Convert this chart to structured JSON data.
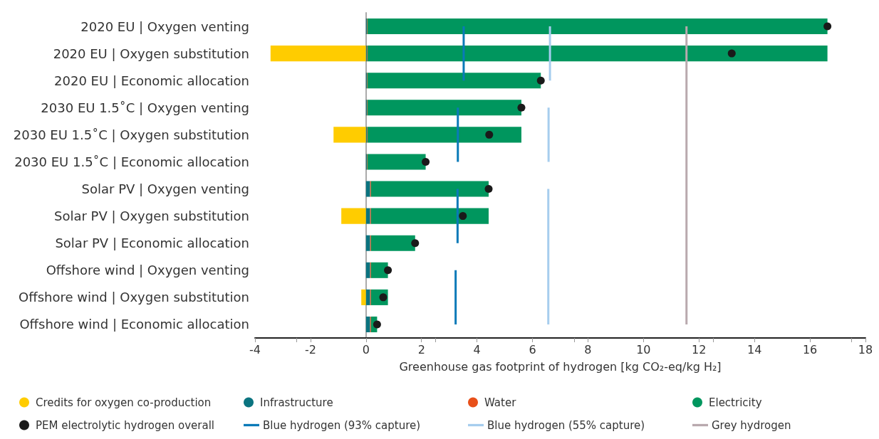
{
  "chart_data": {
    "type": "bar",
    "orientation": "horizontal",
    "stacked": true,
    "xlabel": "Greenhouse gas footprint of hydrogen [kg CO₂-eq/kg H₂]",
    "categories": [
      "2020 EU | Oxygen venting",
      "2020 EU | Oxygen substitution",
      "2020 EU | Economic allocation",
      "2030 EU 1.5˚C | Oxygen venting",
      "2030 EU 1.5˚C | Oxygen substitution",
      "2030 EU 1.5˚C | Economic allocation",
      "Solar PV | Oxygen venting",
      "Solar PV | Oxygen substitution",
      "Solar PV | Economic allocation",
      "Offshore wind | Oxygen venting",
      "Offshore wind | Oxygen substitution",
      "Offshore wind | Economic allocation"
    ],
    "series": [
      {
        "name": "Credits for oxygen co-production",
        "color": "#ffcc00",
        "values": [
          null,
          -3.44,
          null,
          null,
          -1.17,
          null,
          null,
          -0.89,
          null,
          null,
          -0.17,
          null
        ]
      },
      {
        "name": "Infrastructure",
        "color": "#0b7480",
        "values": [
          0.03,
          0.03,
          0.03,
          0.03,
          0.03,
          0.03,
          0.15,
          0.15,
          0.15,
          0.15,
          0.15,
          0.15
        ]
      },
      {
        "name": "Water",
        "color": "#e8501a",
        "values": [
          0.02,
          0.02,
          0.02,
          0.02,
          0.02,
          0.02,
          0.03,
          0.03,
          0.03,
          0.03,
          0.03,
          0.03
        ]
      },
      {
        "name": "Electricity",
        "color": "#00965e",
        "values": [
          16.58,
          16.58,
          6.25,
          5.55,
          5.55,
          2.1,
          4.24,
          4.24,
          1.59,
          0.61,
          0.61,
          0.22
        ]
      },
      {
        "name": "PEM electrolytic hydrogen overall",
        "type": "scatter",
        "color": "#1a1a1a",
        "marker": "circle",
        "values": [
          16.63,
          13.18,
          6.3,
          5.6,
          4.44,
          2.15,
          4.42,
          3.49,
          1.77,
          0.79,
          0.62,
          0.4
        ]
      },
      {
        "name": "Blue hydrogen (93% capture)",
        "type": "line",
        "color": "#0a7ab8",
        "values": [
          3.52,
          3.52,
          3.52,
          3.31,
          3.31,
          3.31,
          3.3,
          3.3,
          3.3,
          3.23,
          3.23,
          3.23
        ]
      },
      {
        "name": "Blue hydrogen (55% capture)",
        "type": "line",
        "color": "#a6cdee",
        "values": [
          6.63,
          6.63,
          6.63,
          6.58,
          6.58,
          6.58,
          6.57,
          6.57,
          6.57,
          6.57,
          6.57,
          6.57
        ]
      },
      {
        "name": "Grey hydrogen",
        "type": "line",
        "color": "#b9a9ae",
        "values": [
          11.55,
          11.55,
          11.55,
          11.55,
          11.55,
          11.55,
          11.55,
          11.55,
          11.55,
          11.55,
          11.55,
          11.55
        ]
      }
    ],
    "xlim": [
      -4,
      18
    ],
    "xticks": [
      -4,
      -2,
      0,
      2,
      4,
      6,
      8,
      10,
      12,
      14,
      16,
      18
    ],
    "grid": false,
    "legend": "bottom"
  }
}
